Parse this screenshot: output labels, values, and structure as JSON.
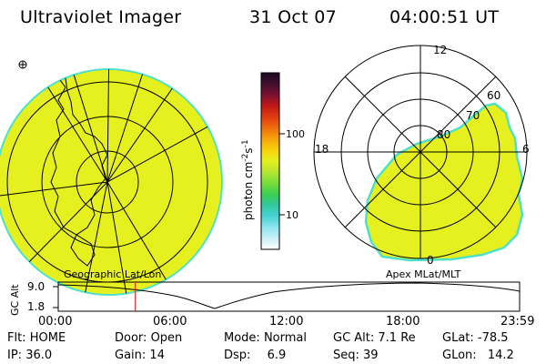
{
  "header": {
    "instrument": "Ultraviolet Imager",
    "date": "31 Oct 07",
    "time": "04:00:51 UT"
  },
  "colors": {
    "emission_fill": "#e6f01e",
    "edge_cyan": "#4fe0c8",
    "grid_line": "#000000",
    "marker_red": "#e8262a"
  },
  "colorbar": {
    "label": "photon cm",
    "label_sup1": "-2",
    "label_mid": "s",
    "label_sup2": "-1",
    "ticks": [
      "100",
      "10"
    ],
    "stops": [
      "#1a0a20",
      "#401030",
      "#7a1030",
      "#c01818",
      "#e03c10",
      "#f06e0c",
      "#f6a40c",
      "#f8d20a",
      "#e6f01e",
      "#b4e632",
      "#78dc3c",
      "#3cd050",
      "#32c8a0",
      "#46d2d2",
      "#8ce6ee",
      "#c8f0f6",
      "#ffffff"
    ]
  },
  "left_panel": {
    "icon": "earth-globe-map-icon",
    "caption": "Geographic Lat/Lon"
  },
  "right_panel": {
    "caption": "Apex MLat/MLT",
    "mlt_labels": {
      "top": "12",
      "left": "18",
      "right": "6",
      "bottom": "0"
    },
    "mlat_labels": [
      "60",
      "70",
      "80"
    ]
  },
  "altitude_plot": {
    "ylabel": "GC Alt",
    "yticks": [
      "9.0",
      "1.8"
    ],
    "xticks": [
      "00:00",
      "06:00",
      "12:00",
      "18:00",
      "23:59"
    ],
    "marker_hour": 4.01
  },
  "status": {
    "row1": [
      {
        "label": "Flt:",
        "value": "HOME"
      },
      {
        "label": "Door:",
        "value": "Open"
      },
      {
        "label": "Mode:",
        "value": "Normal"
      },
      {
        "label": "GC Alt:",
        "value": "7.1 Re"
      },
      {
        "label": "GLat:",
        "value": "-78.5"
      }
    ],
    "row2": [
      {
        "label": "IP:",
        "value": "36.0"
      },
      {
        "label": "Gain:",
        "value": "14"
      },
      {
        "label": "Dsp:",
        "value": "6.9"
      },
      {
        "label": "Seq:",
        "value": "39"
      },
      {
        "label": "GLon:",
        "value": "14.2"
      }
    ]
  }
}
